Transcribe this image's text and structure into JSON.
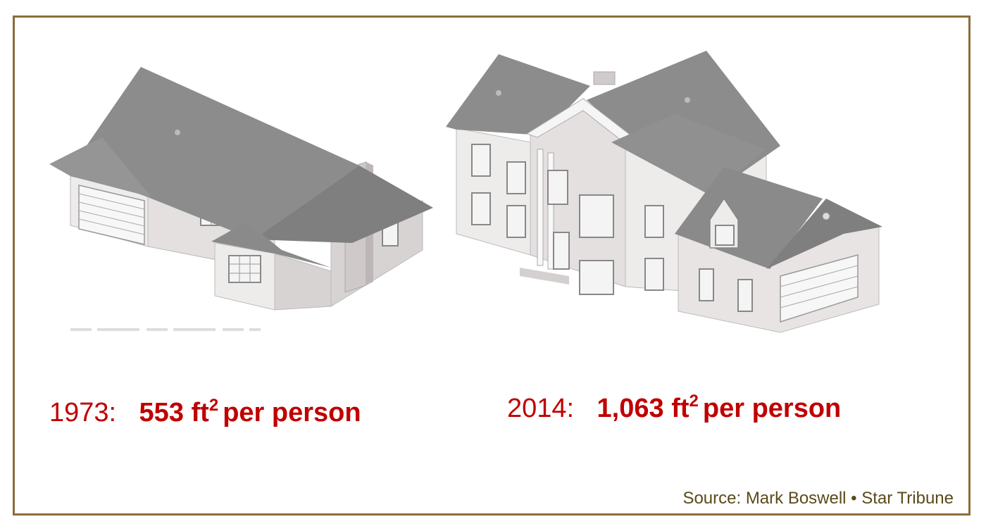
{
  "houses": {
    "small": {
      "year_label": "1973:",
      "area": "553 ft",
      "superscript": "2",
      "per": "per person"
    },
    "large": {
      "year_label": "2014:",
      "area": "1,063 ft",
      "superscript": "2",
      "per": "per person"
    }
  },
  "source": "Source: Mark Boswell • Star  Tribune",
  "colors": {
    "caption": "#c00000",
    "frame": "#8a6d3b",
    "source": "#5a4a1a",
    "roof": "#8c8c8c",
    "wall": "#eeebeb",
    "wall_shade": "#d8d3d3"
  }
}
